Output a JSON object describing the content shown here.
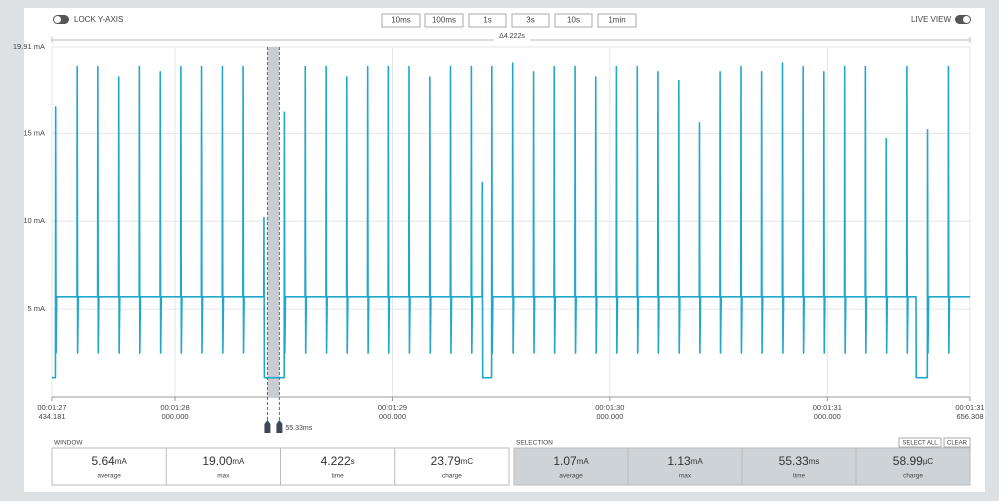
{
  "toolbar": {
    "lock_y_axis": "LOCK Y-AXIS",
    "time_buttons": [
      "10ms",
      "100ms",
      "1s",
      "3s",
      "10s",
      "1min"
    ],
    "live_view": "LIVE VIEW"
  },
  "chart_data": {
    "type": "line",
    "window_span_label": "Δ4.222s",
    "xlim": [
      87.434181,
      91.656308
    ],
    "xticks": [
      {
        "value": 87.434181,
        "label": "00:01:27",
        "sublabel": "434.181"
      },
      {
        "value": 88,
        "label": "00:01:28",
        "sublabel": "000.000"
      },
      {
        "value": 89,
        "label": "00:01:29",
        "sublabel": "000.000"
      },
      {
        "value": 90,
        "label": "00:01:30",
        "sublabel": "000.000"
      },
      {
        "value": 91,
        "label": "00:01:31",
        "sublabel": "000.000"
      },
      {
        "value": 91.656308,
        "label": "00:01:31",
        "sublabel": "656.308"
      }
    ],
    "ylim": [
      0,
      19.91
    ],
    "yticks": [
      {
        "value": 5,
        "label": "5 mA"
      },
      {
        "value": 10,
        "label": "10 mA"
      },
      {
        "value": 15,
        "label": "15 mA"
      },
      {
        "value": 19.91,
        "label": "19.91 mA"
      }
    ],
    "grid": true,
    "selection": {
      "start": 88.425,
      "end": 88.48,
      "label": "55.33ms"
    },
    "x": [
      87.434,
      87.45,
      87.451,
      87.453,
      87.456,
      87.549,
      87.55,
      87.552,
      87.555,
      87.644,
      87.645,
      87.647,
      87.65,
      87.74,
      87.741,
      87.743,
      87.746,
      87.835,
      87.836,
      87.838,
      87.841,
      87.931,
      87.932,
      87.934,
      87.937,
      88.026,
      88.027,
      88.029,
      88.032,
      88.121,
      88.122,
      88.124,
      88.127,
      88.217,
      88.218,
      88.22,
      88.223,
      88.312,
      88.313,
      88.315,
      88.318,
      88.408,
      88.409,
      88.411,
      88.502,
      88.503,
      88.505,
      88.508,
      88.598,
      88.599,
      88.601,
      88.604,
      88.694,
      88.695,
      88.697,
      88.7,
      88.789,
      88.79,
      88.792,
      88.795,
      88.885,
      88.886,
      88.888,
      88.891,
      88.98,
      88.981,
      88.983,
      88.986,
      89.075,
      89.076,
      89.078,
      89.081,
      89.171,
      89.172,
      89.174,
      89.177,
      89.266,
      89.267,
      89.269,
      89.272,
      89.362,
      89.363,
      89.365,
      89.368,
      89.412,
      89.413,
      89.415,
      89.456,
      89.457,
      89.459,
      89.462,
      89.552,
      89.553,
      89.555,
      89.558,
      89.648,
      89.649,
      89.651,
      89.654,
      89.743,
      89.744,
      89.746,
      89.749,
      89.839,
      89.84,
      89.842,
      89.845,
      89.934,
      89.935,
      89.937,
      89.94,
      90.029,
      90.03,
      90.032,
      90.035,
      90.125,
      90.126,
      90.128,
      90.131,
      90.22,
      90.221,
      90.223,
      90.226,
      90.316,
      90.317,
      90.319,
      90.322,
      90.411,
      90.412,
      90.414,
      90.417,
      90.506,
      90.507,
      90.509,
      90.512,
      90.602,
      90.603,
      90.605,
      90.608,
      90.697,
      90.698,
      90.7,
      90.703,
      90.793,
      90.794,
      90.796,
      90.799,
      90.888,
      90.889,
      90.891,
      90.894,
      90.983,
      90.984,
      90.986,
      90.989,
      91.079,
      91.08,
      91.082,
      91.085,
      91.174,
      91.175,
      91.177,
      91.18,
      91.27,
      91.271,
      91.273,
      91.276,
      91.365,
      91.366,
      91.368,
      91.371,
      91.408,
      91.409,
      91.46,
      91.461,
      91.463,
      91.466,
      91.556,
      91.557,
      91.559,
      91.562,
      91.656
    ],
    "series": [
      {
        "color": "#1fa8cc",
        "values": [
          1.1,
          1.1,
          16.5,
          2.5,
          5.7,
          5.7,
          18.8,
          2.5,
          5.7,
          5.7,
          18.8,
          2.5,
          5.7,
          5.7,
          18.2,
          2.5,
          5.7,
          5.7,
          18.8,
          2.5,
          5.7,
          5.7,
          18.5,
          2.5,
          5.7,
          5.7,
          18.8,
          2.5,
          5.7,
          5.7,
          18.8,
          2.5,
          5.7,
          5.7,
          18.8,
          2.5,
          5.7,
          5.7,
          18.8,
          2.5,
          5.7,
          5.7,
          10.2,
          1.1,
          1.1,
          16.2,
          2.5,
          5.7,
          5.7,
          18.8,
          2.5,
          5.7,
          5.7,
          18.8,
          2.5,
          5.7,
          5.7,
          18.2,
          2.5,
          5.7,
          5.7,
          18.8,
          2.5,
          5.7,
          5.7,
          18.8,
          2.5,
          5.7,
          5.7,
          18.8,
          2.5,
          5.7,
          5.7,
          18.2,
          2.5,
          5.7,
          5.7,
          18.8,
          2.5,
          5.7,
          5.7,
          18.8,
          2.5,
          5.7,
          5.7,
          12.2,
          1.1,
          1.1,
          18.8,
          2.5,
          5.7,
          5.7,
          19.0,
          2.5,
          5.7,
          5.7,
          18.5,
          2.5,
          5.7,
          5.7,
          18.8,
          2.5,
          5.7,
          5.7,
          18.8,
          2.5,
          5.7,
          5.7,
          18.2,
          2.5,
          5.7,
          5.7,
          18.8,
          2.5,
          5.7,
          5.7,
          18.8,
          2.5,
          5.7,
          5.7,
          18.5,
          2.5,
          5.7,
          5.7,
          18.0,
          2.5,
          5.7,
          5.7,
          15.6,
          2.5,
          5.7,
          5.7,
          18.5,
          2.5,
          5.7,
          5.7,
          18.8,
          2.5,
          5.7,
          5.7,
          18.5,
          2.5,
          5.7,
          5.7,
          19.0,
          2.5,
          5.7,
          5.7,
          18.8,
          2.5,
          5.7,
          5.7,
          18.5,
          2.5,
          5.7,
          5.7,
          18.8,
          2.5,
          5.7,
          5.7,
          18.8,
          2.5,
          5.7,
          5.7,
          14.7,
          2.5,
          5.7,
          5.7,
          18.8,
          2.5,
          5.7,
          5.7,
          1.1,
          1.1,
          15.2,
          2.5,
          5.7,
          5.7,
          18.8,
          2.5,
          5.7,
          5.7
        ]
      }
    ]
  },
  "window_stats": {
    "title": "WINDOW",
    "items": [
      {
        "value": "5.64",
        "unit": "mA",
        "label": "average"
      },
      {
        "value": "19.00",
        "unit": "mA",
        "label": "max"
      },
      {
        "value": "4.222",
        "unit": "s",
        "label": "time"
      },
      {
        "value": "23.79",
        "unit": "mC",
        "label": "charge"
      }
    ]
  },
  "selection_stats": {
    "title": "SELECTION",
    "buttons": [
      "SELECT ALL",
      "CLEAR"
    ],
    "items": [
      {
        "value": "1.07",
        "unit": "mA",
        "label": "average"
      },
      {
        "value": "1.13",
        "unit": "mA",
        "label": "max"
      },
      {
        "value": "55.33",
        "unit": "ms",
        "label": "time"
      },
      {
        "value": "58.99",
        "unit": "µC",
        "label": "charge"
      }
    ]
  }
}
